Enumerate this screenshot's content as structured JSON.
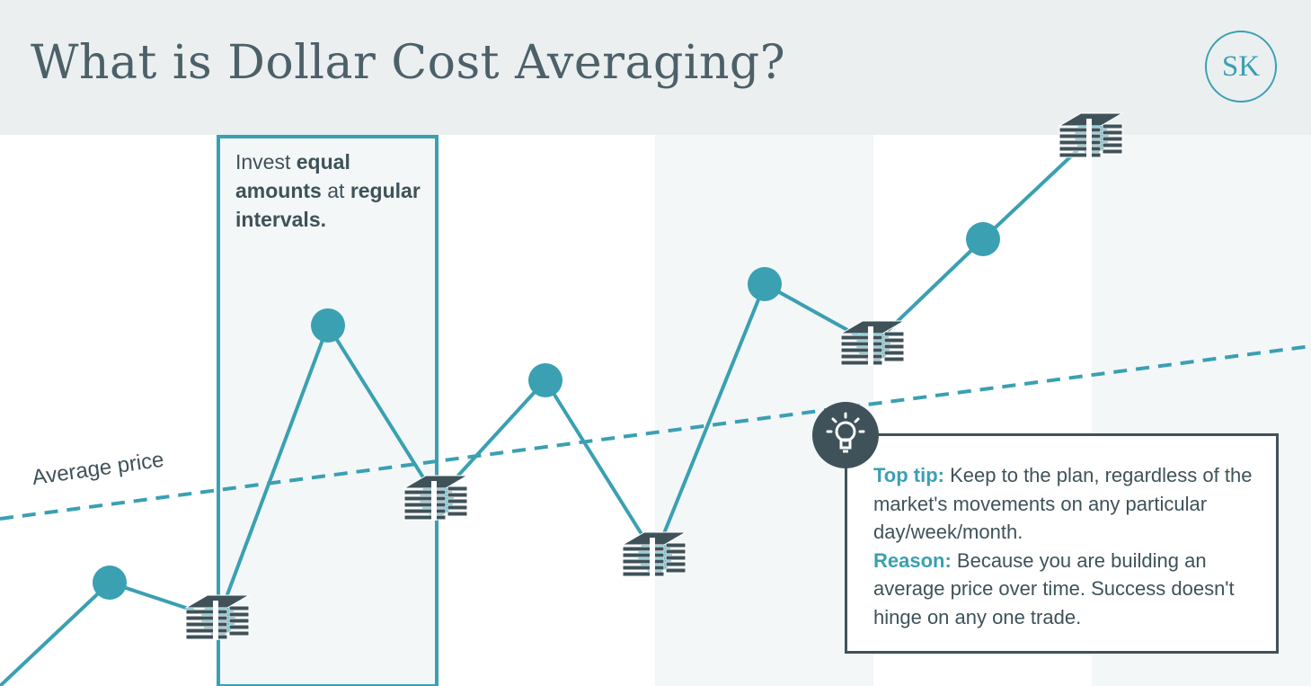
{
  "header": {
    "title": "What is Dollar Cost Averaging?",
    "logo_text": "SK"
  },
  "callout": {
    "prefix": "Invest ",
    "bold1": "equal amounts",
    "mid": " at ",
    "bold2": "regular intervals."
  },
  "average_label": "Average price",
  "tip": {
    "tip_label": "Top tip:",
    "tip_text": " Keep to the plan, regardless of the market's movements on any particular day/week/month.",
    "reason_label": "Reason:",
    "reason_text": " Because you are building an average price over time. Success doesn't hinge on any one trade."
  },
  "icons": {
    "money": "money-stack-icon",
    "bulb": "lightbulb-icon"
  },
  "colors": {
    "teal": "#3aa0b2",
    "dark": "#3f5259",
    "header_bg": "#ebeff0",
    "band": "#f3f7f8"
  },
  "chart_data": {
    "type": "line",
    "series": [
      {
        "values": [
          {
            "point": 1,
            "invest": false
          },
          {
            "point": 2,
            "invest": true
          },
          {
            "point": 3,
            "invest": false
          },
          {
            "point": 4,
            "invest": true
          },
          {
            "point": 5,
            "invest": false
          },
          {
            "point": 6,
            "invest": true
          },
          {
            "point": 7,
            "invest": false
          },
          {
            "point": 8,
            "invest": true
          },
          {
            "point": 9,
            "invest": false
          },
          {
            "point": 10,
            "invest": true
          }
        ]
      }
    ],
    "average_line": "dashed",
    "axes_shown": false
  }
}
